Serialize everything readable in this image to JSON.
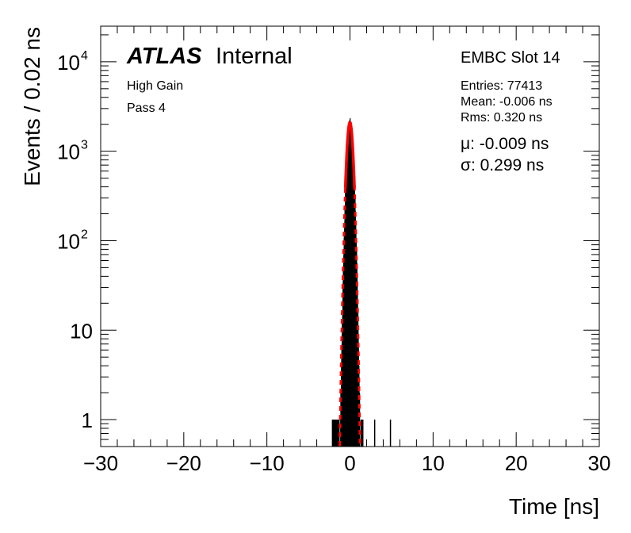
{
  "chart_data": {
    "type": "histogram",
    "title": "",
    "xlabel": "Time [ns]",
    "ylabel": "Events / 0.02 ns",
    "xlim": [
      -30,
      30
    ],
    "ylim": [
      0.5,
      25000
    ],
    "yscale": "log",
    "grid": false,
    "bin_width": 0.02,
    "x_ticks": [
      -30,
      -20,
      -10,
      0,
      10,
      20,
      30
    ],
    "x_tick_labels": [
      "−30",
      "−20",
      "−10",
      "0",
      "10",
      "20",
      "30"
    ],
    "y_ticks": [
      1,
      10,
      100,
      1000,
      10000
    ],
    "y_tick_labels": [
      {
        "base": "1",
        "exp": ""
      },
      {
        "base": "10",
        "exp": ""
      },
      {
        "base": "10",
        "exp": "2"
      },
      {
        "base": "10",
        "exp": "3"
      },
      {
        "base": "10",
        "exp": "4"
      }
    ],
    "fit": {
      "name": "Gaussian fit",
      "mu": -0.009,
      "sigma": 0.299,
      "peak": 2100,
      "color": "#ff0000"
    },
    "histogram_color": "#000000",
    "tail_entries": [
      {
        "x": 2.9,
        "y": 1
      },
      {
        "x": 4.8,
        "y": 1
      }
    ]
  },
  "labels": {
    "atlas": "ATLAS",
    "internal": "Internal",
    "gain": "High Gain",
    "pass": "Pass 4",
    "slot": "EMBC Slot 14",
    "entries": "Entries: 77413",
    "mean": "Mean: -0.006 ns",
    "rms": "Rms: 0.320 ns",
    "mu": "μ: -0.009 ns",
    "sigma": "σ: 0.299 ns"
  }
}
